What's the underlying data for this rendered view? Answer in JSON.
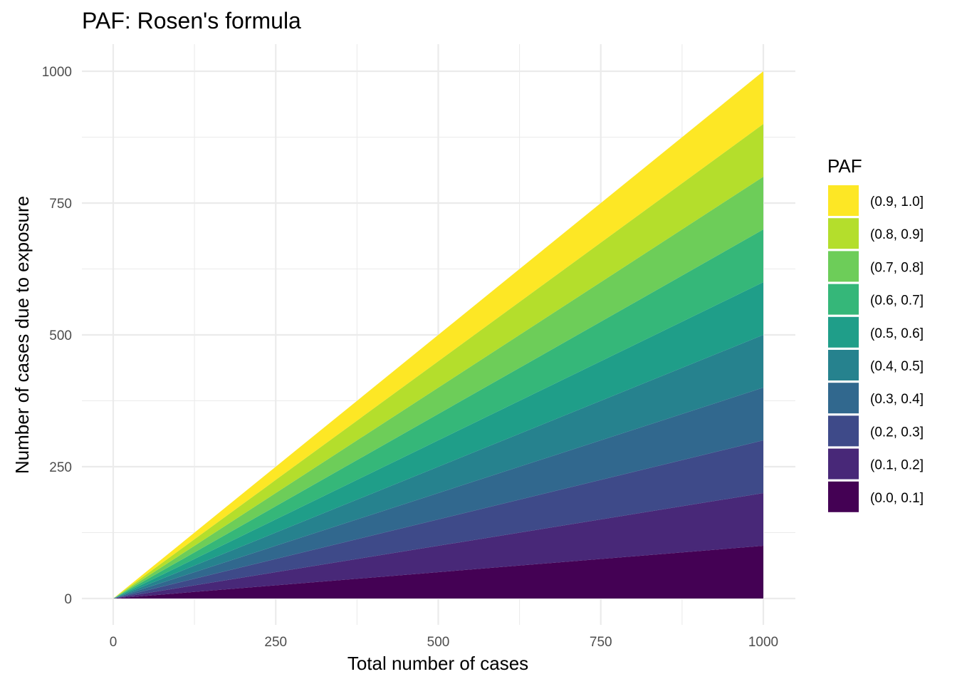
{
  "chart_data": {
    "type": "area",
    "stacked": true,
    "title": "PAF: Rosen's formula",
    "xlabel": "Total number of cases",
    "ylabel": "Number of cases due to exposure",
    "x": [
      0,
      1000
    ],
    "xlim": [
      0,
      1000
    ],
    "ylim": [
      0,
      1000
    ],
    "xticks": [
      0,
      250,
      500,
      750,
      1000
    ],
    "yticks": [
      0,
      250,
      500,
      750,
      1000
    ],
    "grid": true,
    "legend": {
      "title": "PAF",
      "position": "right"
    },
    "series": [
      {
        "name": "(0.0, 0.1]",
        "values": [
          0,
          100
        ],
        "color": "#440154"
      },
      {
        "name": "(0.1, 0.2]",
        "values": [
          0,
          100
        ],
        "color": "#482878"
      },
      {
        "name": "(0.2, 0.3]",
        "values": [
          0,
          100
        ],
        "color": "#3E4A89"
      },
      {
        "name": "(0.3, 0.4]",
        "values": [
          0,
          100
        ],
        "color": "#31688E"
      },
      {
        "name": "(0.4, 0.5]",
        "values": [
          0,
          100
        ],
        "color": "#26828E"
      },
      {
        "name": "(0.5, 0.6]",
        "values": [
          0,
          100
        ],
        "color": "#1F9E89"
      },
      {
        "name": "(0.6, 0.7]",
        "values": [
          0,
          100
        ],
        "color": "#35B779"
      },
      {
        "name": "(0.7, 0.8]",
        "values": [
          0,
          100
        ],
        "color": "#6DCD59"
      },
      {
        "name": "(0.8, 0.9]",
        "values": [
          0,
          100
        ],
        "color": "#B4DE2C"
      },
      {
        "name": "(0.9, 1.0]",
        "values": [
          0,
          100
        ],
        "color": "#FDE725"
      }
    ]
  }
}
